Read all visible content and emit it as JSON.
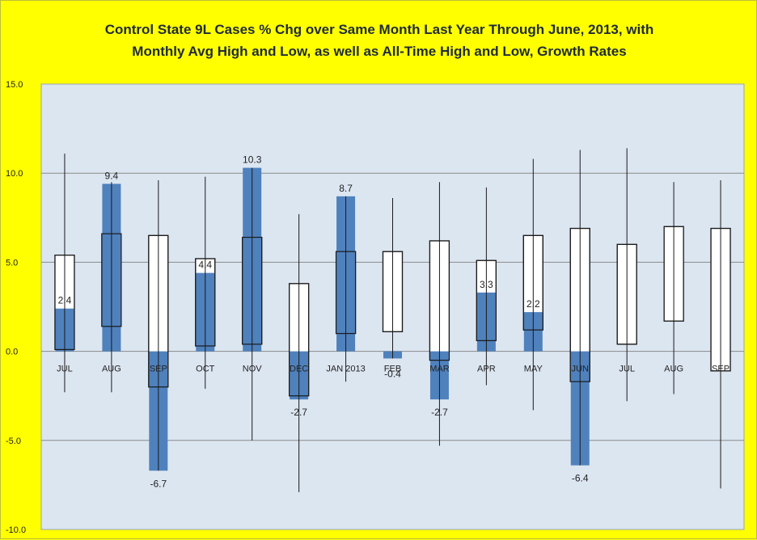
{
  "chart_data": {
    "type": "bar",
    "title": [
      "Control State 9L Cases % Chg over Same Month Last Year Through June, 2013, with",
      "Monthly Avg High and Low, as well as All-Time High and Low,  Growth Rates"
    ],
    "ylim": [
      -10,
      15
    ],
    "yticks": [
      "15.0",
      "10.0",
      "5.0",
      "0.0",
      "-5.0",
      "-10.0"
    ],
    "ytick_values": [
      15,
      10,
      5,
      0,
      -5,
      -10
    ],
    "grid": true,
    "categories": [
      "JUL",
      "AUG",
      "SEP",
      "OCT",
      "NOV",
      "DEC",
      "JAN 2013",
      "FEB",
      "MAR",
      "APR",
      "MAY",
      "JUN",
      "JUL",
      "AUG",
      "SEP"
    ],
    "series": [
      {
        "values": [
          2.4,
          9.4,
          -6.7,
          4.4,
          10.3,
          -2.7,
          8.7,
          -0.4,
          -2.7,
          3.3,
          2.2,
          -6.4,
          null,
          null,
          null
        ],
        "labels": [
          "2.4",
          "9.4",
          "-6.7",
          "4.4",
          "10.3",
          "-2.7",
          "8.7",
          "-0.4",
          "-2.7",
          "3.3",
          "2.2",
          "-6.4",
          "",
          "",
          ""
        ]
      },
      {
        "avg_high": [
          5.4,
          6.6,
          6.5,
          5.2,
          6.4,
          3.8,
          5.6,
          5.6,
          6.2,
          5.1,
          6.5,
          6.9,
          6.0,
          7.0,
          6.9
        ],
        "avg_low": [
          0.1,
          1.4,
          -2.0,
          0.3,
          0.4,
          -2.5,
          1.0,
          1.1,
          -0.5,
          0.6,
          1.2,
          -1.7,
          0.4,
          1.7,
          -1.1
        ]
      },
      {
        "all_time_high": [
          11.1,
          9.5,
          9.6,
          9.8,
          10.3,
          7.7,
          8.7,
          8.6,
          9.5,
          9.2,
          10.8,
          11.3,
          11.4,
          9.5,
          9.6
        ],
        "all_time_low": [
          -2.3,
          -2.3,
          -6.7,
          -2.1,
          -5.0,
          -7.9,
          -1.7,
          -0.4,
          -5.3,
          -1.9,
          -3.3,
          -6.4,
          -2.8,
          -2.4,
          -7.7
        ]
      }
    ],
    "colors": {
      "bar": "#4f81bd",
      "box": "#ffffff",
      "plot_bg": "#dce6f1",
      "page_bg": "#ffff00",
      "grid": "#8a8a8a",
      "line": "#1a1a1a"
    }
  }
}
